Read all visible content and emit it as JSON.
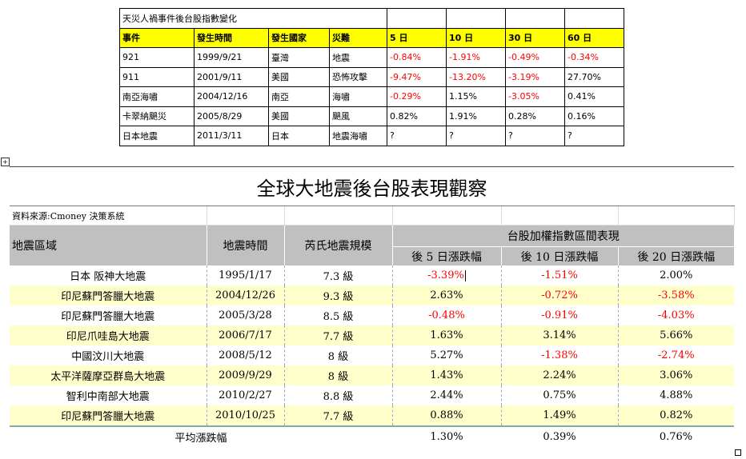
{
  "top_table": {
    "title": "天災人禍事件後台股指數變化",
    "headers": [
      "事件",
      "發生時間",
      "發生國家",
      "災難",
      "5 日",
      "10 日",
      "30 日",
      "60 日"
    ],
    "rows": [
      [
        "921",
        "1999/9/21",
        "臺灣",
        "地震",
        "-0.84%",
        "-1.91%",
        "-0.49%",
        "-0.34%"
      ],
      [
        "911",
        "2001/9/11",
        "美國",
        "恐怖攻擊",
        "-9.47%",
        "-13.20%",
        "-3.19%",
        "27.70%"
      ],
      [
        "南亞海嘯",
        "2004/12/16",
        "南亞",
        "海嘯",
        "-0.29%",
        "1.15%",
        "-3.05%",
        "0.41%"
      ],
      [
        "卡翠納颶災",
        "2005/8/29",
        "美國",
        "颶風",
        "0.82%",
        "1.91%",
        "0.28%",
        "0.16%"
      ],
      [
        "日本地震",
        "2011/3/11",
        "日本",
        "地震海嘯",
        "?",
        "?",
        "?",
        "?"
      ]
    ]
  },
  "bottom_table": {
    "title": "全球大地震後台股表現觀察",
    "source": "資料來源:Cmoney 決策系統",
    "headers": {
      "region": "地震區域",
      "time": "地震時間",
      "magnitude": "芮氏地震規模",
      "group": "台股加權指數區間表現",
      "d5": "後 5 日漲跌幅",
      "d10": "後 10 日漲跌幅",
      "d20": "後 20 日漲跌幅"
    },
    "rows": [
      [
        "日本 阪神大地震",
        "1995/1/17",
        "7.3 級",
        "-3.39%",
        "-1.51%",
        "2.00%"
      ],
      [
        "印尼蘇門答臘大地震",
        "2004/12/26",
        "9.3 級",
        "2.63%",
        "-0.72%",
        "-3.58%"
      ],
      [
        "印尼蘇門答臘大地震",
        "2005/3/28",
        "8.5 級",
        "-0.48%",
        "-0.91%",
        "-4.03%"
      ],
      [
        "印尼爪哇島大地震",
        "2006/7/17",
        "7.7 級",
        "1.63%",
        "3.14%",
        "5.66%"
      ],
      [
        "中國汶川大地震",
        "2008/5/12",
        "8 級",
        "5.27%",
        "-1.38%",
        "-2.74%"
      ],
      [
        "太平洋薩摩亞群島大地震",
        "2009/9/29",
        "8 級",
        "1.43%",
        "2.24%",
        "3.06%"
      ],
      [
        "智利中南部大地震",
        "2010/2/27",
        "8.8 級",
        "2.44%",
        "0.75%",
        "4.88%"
      ],
      [
        "印尼蘇門答臘大地震",
        "2010/10/25",
        "7.7 級",
        "0.88%",
        "1.49%",
        "0.82%"
      ]
    ],
    "average": {
      "label": "平均漲跌幅",
      "values": [
        "1.30%",
        "0.39%",
        "0.76%"
      ]
    }
  },
  "colors": {
    "header_yellow": "#ffff00",
    "row_highlight": "#ffffcc",
    "header_gray": "#c0c0c0",
    "negative": "#ff0000"
  },
  "icons": {
    "table_anchor": "move-handle-icon",
    "resize_handle": "resize-handle-icon"
  }
}
